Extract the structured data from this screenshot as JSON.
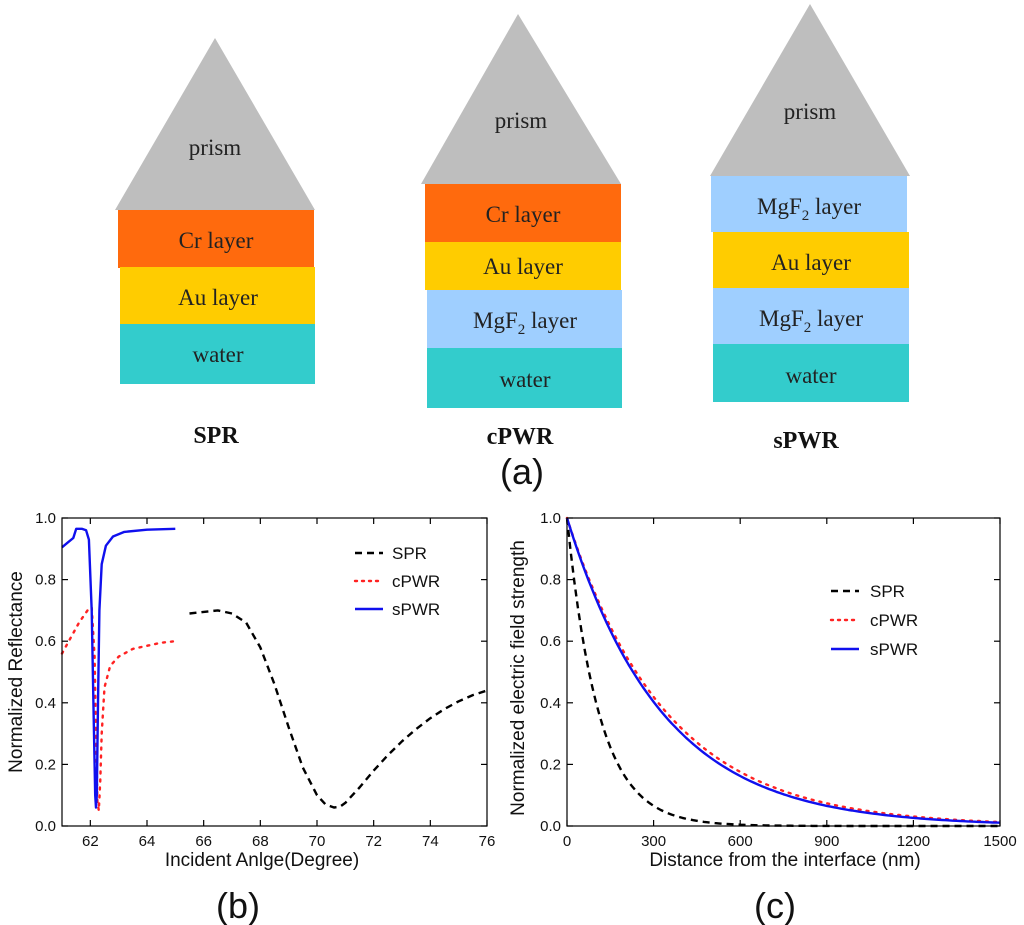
{
  "structures": [
    {
      "id": "spr",
      "title": "SPR",
      "prism": {
        "label": "prism",
        "color": "#bebebe"
      },
      "layers": [
        {
          "label": "Cr layer",
          "sub": "",
          "suffix": "",
          "color": "#ff6a0d"
        },
        {
          "label": "Au layer",
          "sub": "",
          "suffix": "",
          "color": "#ffcc00"
        },
        {
          "label": "water",
          "sub": "",
          "suffix": "",
          "color": "#33cccc"
        }
      ]
    },
    {
      "id": "cpwr",
      "title": "cPWR",
      "prism": {
        "label": "prism",
        "color": "#bebebe"
      },
      "layers": [
        {
          "label": "Cr layer",
          "sub": "",
          "suffix": "",
          "color": "#ff6a0d"
        },
        {
          "label": "Au layer",
          "sub": "",
          "suffix": "",
          "color": "#ffcc00"
        },
        {
          "label": "MgF",
          "sub": "2",
          "suffix": " layer",
          "color": "#9fcfff"
        },
        {
          "label": "water",
          "sub": "",
          "suffix": "",
          "color": "#33cccc"
        }
      ]
    },
    {
      "id": "spwr",
      "title": "sPWR",
      "prism": {
        "label": "prism",
        "color": "#bebebe"
      },
      "layers": [
        {
          "label": "MgF",
          "sub": "2",
          "suffix": " layer",
          "color": "#9fcfff"
        },
        {
          "label": "Au layer",
          "sub": "",
          "suffix": "",
          "color": "#ffcc00"
        },
        {
          "label": "MgF",
          "sub": "2",
          "suffix": " layer",
          "color": "#9fcfff"
        },
        {
          "label": "water",
          "sub": "",
          "suffix": "",
          "color": "#33cccc"
        }
      ]
    }
  ],
  "panel_labels": {
    "a": "(a)",
    "b": "(b)",
    "c": "(c)"
  },
  "chart_data": [
    {
      "id": "b",
      "type": "line",
      "xlabel": "Incident Anlge(Degree)",
      "ylabel": "Normalized Reflectance",
      "xlim": [
        61,
        76
      ],
      "ylim": [
        0,
        1
      ],
      "xticks": [
        62,
        64,
        66,
        68,
        70,
        72,
        74,
        76
      ],
      "yticks": [
        0.0,
        0.2,
        0.4,
        0.6,
        0.8,
        1.0
      ],
      "legend": "top-right",
      "series": [
        {
          "name": "SPR",
          "style": "dashed",
          "color": "#000000",
          "x": [
            65.5,
            66.0,
            66.5,
            67.0,
            67.5,
            68.0,
            68.5,
            69.0,
            69.5,
            70.0,
            70.3,
            70.6,
            70.8,
            71.0,
            71.5,
            72.0,
            72.5,
            73.0,
            73.5,
            74.0,
            74.5,
            75.0,
            75.5,
            76.0
          ],
          "y": [
            0.69,
            0.695,
            0.7,
            0.69,
            0.66,
            0.58,
            0.46,
            0.32,
            0.19,
            0.1,
            0.07,
            0.06,
            0.062,
            0.075,
            0.125,
            0.18,
            0.23,
            0.275,
            0.315,
            0.35,
            0.38,
            0.405,
            0.425,
            0.44
          ]
        },
        {
          "name": "cPWR",
          "style": "dotted",
          "color": "#ff2222",
          "x": [
            61.0,
            61.3,
            61.6,
            61.9,
            62.05,
            62.15,
            62.2,
            62.25,
            62.3,
            62.35,
            62.4,
            62.5,
            62.7,
            63.0,
            63.5,
            64.0,
            64.5,
            65.0
          ],
          "y": [
            0.56,
            0.61,
            0.66,
            0.7,
            0.71,
            0.55,
            0.3,
            0.08,
            0.05,
            0.15,
            0.3,
            0.45,
            0.52,
            0.55,
            0.575,
            0.585,
            0.595,
            0.6
          ]
        },
        {
          "name": "sPWR",
          "style": "solid",
          "color": "#1010ee",
          "x": [
            61.0,
            61.2,
            61.4,
            61.5,
            61.7,
            61.85,
            61.95,
            62.05,
            62.12,
            62.17,
            62.2,
            62.23,
            62.27,
            62.32,
            62.4,
            62.55,
            62.8,
            63.2,
            64.0,
            65.0
          ],
          "y": [
            0.905,
            0.92,
            0.935,
            0.965,
            0.965,
            0.96,
            0.93,
            0.7,
            0.35,
            0.1,
            0.06,
            0.1,
            0.4,
            0.7,
            0.85,
            0.91,
            0.94,
            0.955,
            0.962,
            0.965
          ]
        }
      ]
    },
    {
      "id": "c",
      "type": "line",
      "xlabel": "Distance from the interface (nm)",
      "ylabel": "Normalized electric field strength",
      "xlim": [
        0,
        1500
      ],
      "ylim": [
        0,
        1
      ],
      "xticks": [
        0,
        300,
        600,
        900,
        1200,
        1500
      ],
      "yticks": [
        0.0,
        0.2,
        0.4,
        0.6,
        0.8,
        1.0
      ],
      "legend": "center-right",
      "series": [
        {
          "name": "SPR",
          "style": "dashed",
          "color": "#000000",
          "decay_length_nm": 110,
          "x_max": 1500
        },
        {
          "name": "cPWR",
          "style": "dotted",
          "color": "#ff2222",
          "decay_length_nm": 345,
          "x_max": 1500
        },
        {
          "name": "sPWR",
          "style": "solid",
          "color": "#1010ee",
          "decay_length_nm": 330,
          "x_max": 1500
        }
      ]
    }
  ]
}
